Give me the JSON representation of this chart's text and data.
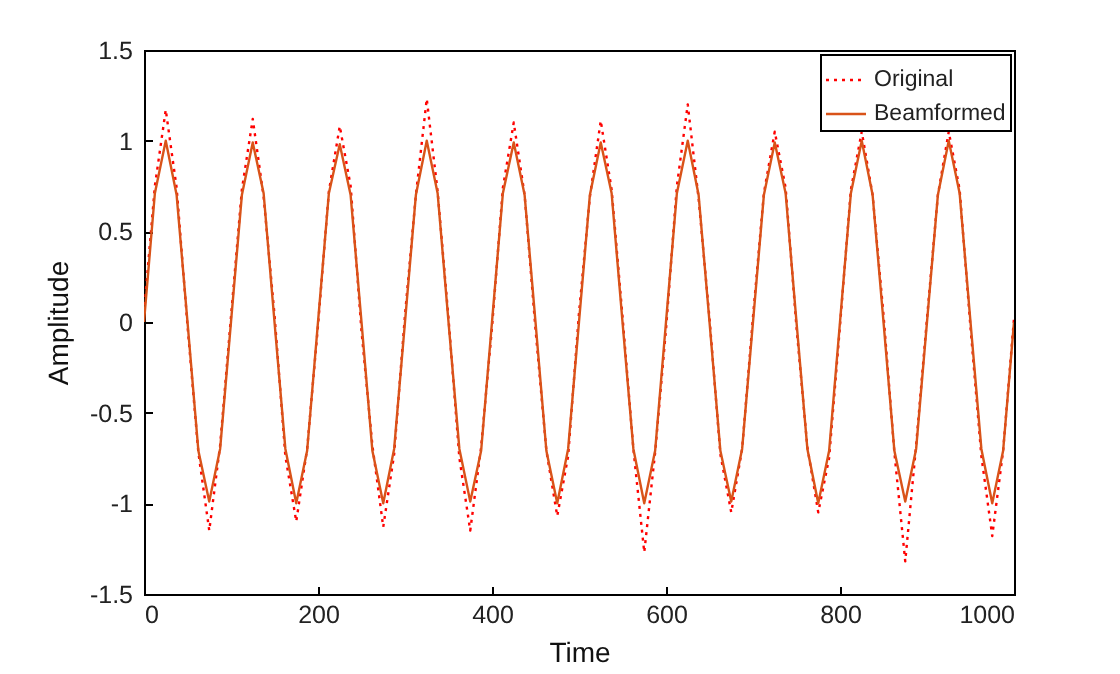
{
  "chart_data": {
    "type": "line",
    "xlabel": "Time",
    "ylabel": "Amplitude",
    "x": [
      0,
      12.5,
      25,
      37.5,
      50,
      62.5,
      75,
      87.5,
      100,
      112.5,
      125,
      137.5,
      150,
      162.5,
      175,
      187.5,
      200,
      212.5,
      225,
      237.5,
      250,
      262.5,
      275,
      287.5,
      300,
      312.5,
      325,
      337.5,
      350,
      362.5,
      375,
      387.5,
      400,
      412.5,
      425,
      437.5,
      450,
      462.5,
      475,
      487.5,
      500,
      512.5,
      525,
      537.5,
      550,
      562.5,
      575,
      587.5,
      600,
      612.5,
      625,
      637.5,
      650,
      662.5,
      675,
      687.5,
      700,
      712.5,
      725,
      737.5,
      750,
      762.5,
      775,
      787.5,
      800,
      812.5,
      825,
      837.5,
      850,
      862.5,
      875,
      887.5,
      900,
      912.5,
      925,
      937.5,
      950,
      962.5,
      975,
      987.5,
      1000
    ],
    "xlim": [
      0,
      1000
    ],
    "xticks": [
      0,
      200,
      400,
      600,
      800,
      1000
    ],
    "ylim": [
      -1.5,
      1.5
    ],
    "yticks": [
      -1.5,
      -1,
      -0.5,
      0,
      0.5,
      1,
      1.5
    ],
    "grid": false,
    "legend": "top right",
    "series": [
      {
        "name": "Original",
        "color": "#ff0000",
        "line_style": "dotted",
        "values": [
          0.05,
          0.75,
          1.17,
          0.74,
          -0.02,
          -0.72,
          -1.15,
          -0.68,
          0.03,
          0.73,
          1.12,
          0.69,
          0.04,
          -0.74,
          -1.1,
          -0.7,
          -0.02,
          0.72,
          1.08,
          0.75,
          -0.05,
          -0.68,
          -1.13,
          -0.73,
          0.04,
          0.7,
          1.23,
          0.72,
          0.02,
          -0.75,
          -1.15,
          -0.69,
          -0.03,
          0.74,
          1.1,
          0.7,
          -0.04,
          -0.71,
          -1.07,
          -0.74,
          0.05,
          0.69,
          1.11,
          0.73,
          0.03,
          -0.7,
          -1.27,
          -0.72,
          -0.04,
          0.75,
          1.2,
          0.68,
          0.02,
          -0.73,
          -1.05,
          -0.7,
          0.03,
          0.71,
          1.05,
          0.74,
          -0.03,
          -0.69,
          -1.05,
          -0.75,
          -0.02,
          0.73,
          1.05,
          0.7,
          0.04,
          -0.72,
          -1.32,
          -0.68,
          0.02,
          0.7,
          1.05,
          0.73,
          -0.03,
          -0.74,
          -1.18,
          -0.71,
          0.02
        ]
      },
      {
        "name": "Beamformed",
        "color": "#d95319",
        "line_style": "solid",
        "values": [
          0,
          0.71,
          1,
          0.7,
          0,
          -0.71,
          -0.99,
          -0.7,
          0,
          0.7,
          0.99,
          0.71,
          0,
          -0.7,
          -1,
          -0.71,
          0,
          0.71,
          0.98,
          0.7,
          0,
          -0.71,
          -1,
          -0.7,
          0,
          0.7,
          1,
          0.71,
          0,
          -0.7,
          -0.99,
          -0.71,
          0,
          0.71,
          0.99,
          0.7,
          0,
          -0.71,
          -1,
          -0.7,
          0,
          0.7,
          0.99,
          0.71,
          0,
          -0.7,
          -1,
          -0.71,
          0,
          0.71,
          1,
          0.7,
          0,
          -0.71,
          -0.99,
          -0.7,
          0,
          0.7,
          0.99,
          0.71,
          0,
          -0.7,
          -1,
          -0.71,
          0,
          0.71,
          1,
          0.7,
          0,
          -0.71,
          -0.99,
          -0.7,
          0,
          0.7,
          1,
          0.71,
          0,
          -0.7,
          -1,
          -0.71,
          0
        ]
      }
    ]
  }
}
